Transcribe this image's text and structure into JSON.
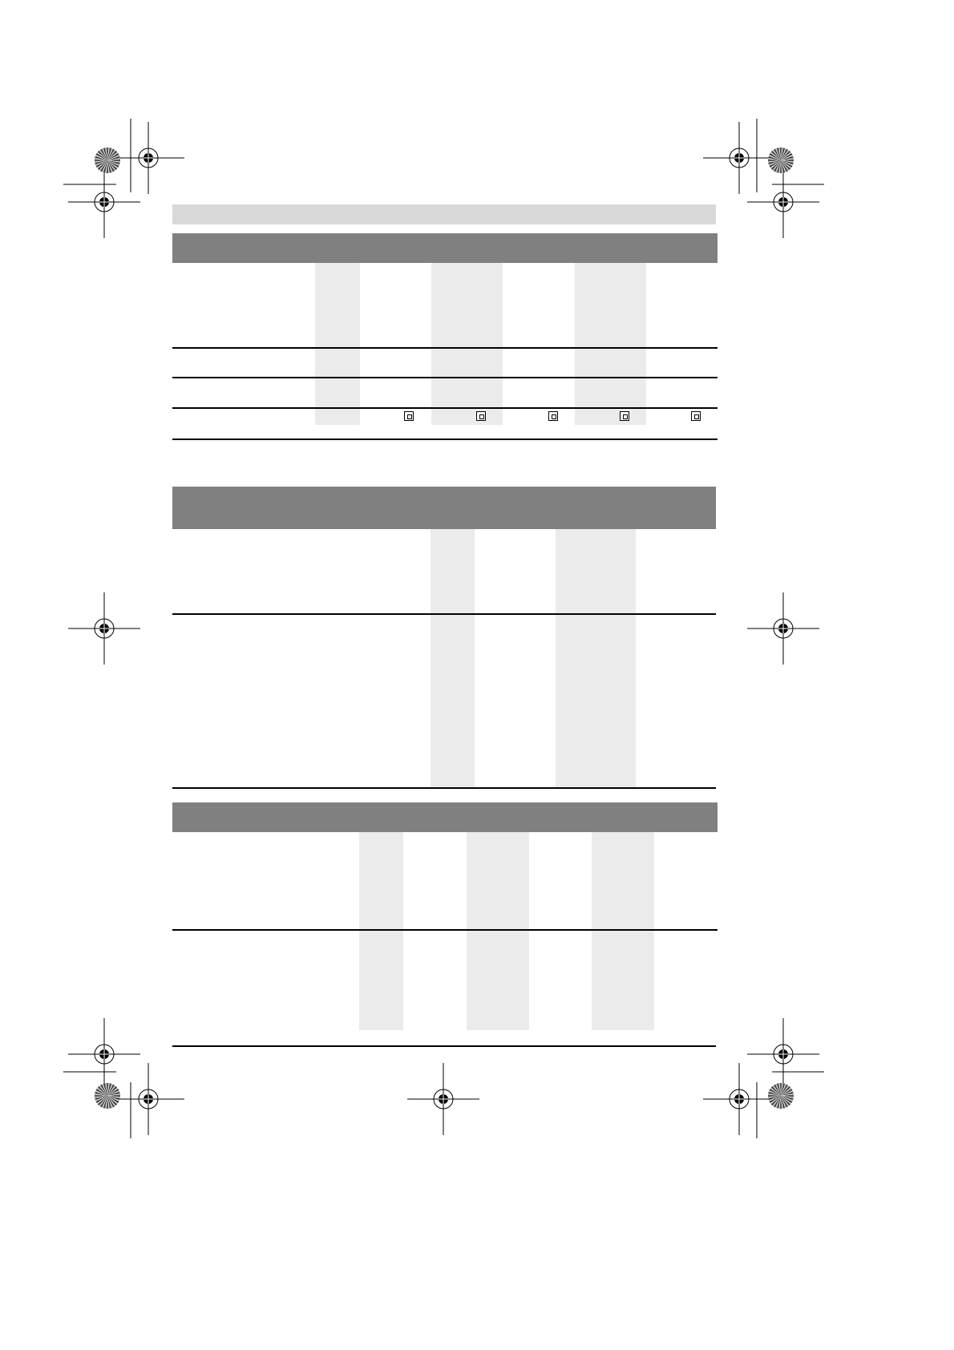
{
  "colors": {
    "top_bar": "#d9d9d9",
    "table_header": "#808080",
    "column_shade": "#ebebeb",
    "rule": "#000000"
  },
  "tables": [
    {
      "name": "table-1",
      "rows": 4,
      "icons": [
        "double-insulation-icon",
        "double-insulation-icon",
        "double-insulation-icon",
        "double-insulation-icon",
        "double-insulation-icon"
      ]
    },
    {
      "name": "table-2",
      "rows": 2
    },
    {
      "name": "table-3",
      "rows": 2
    }
  ],
  "print_marks": {
    "registration_icon": "registration-crosshair-icon",
    "color_bar_icon": "starburst-target-icon"
  }
}
